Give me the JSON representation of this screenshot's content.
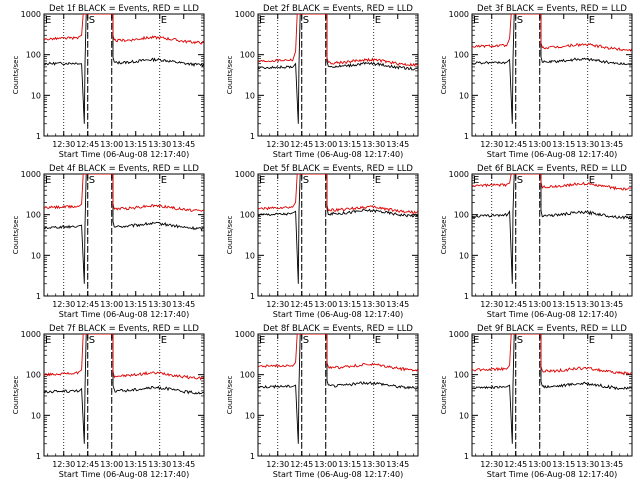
{
  "chart_data": [
    {
      "type": "line",
      "title": "Det 1f BLACK = Events, RED = LLD",
      "xlabel": "Start Time (06-Aug-08 12:17:40)",
      "ylabel": "Counts/sec",
      "yscale": "log",
      "ylim": [
        1,
        1000
      ],
      "y_ticks": [
        "1",
        "10",
        "100",
        "1000"
      ],
      "x_ticks": [
        "12:30",
        "12:45",
        "13:00",
        "13:15",
        "13:30",
        "13:45"
      ],
      "x_range_min": [
        0,
        100
      ],
      "gridlines_x": [
        12.33,
        27.33,
        42.33,
        72.33
      ],
      "markers": [
        {
          "text": "E",
          "x": 0
        },
        {
          "text": "S",
          "x": 27.33
        },
        {
          "text": "E",
          "x": 72.33
        }
      ],
      "dashed_lines_x": [
        27.33,
        42.33
      ],
      "series": [
        {
          "name": "BLACK = Events",
          "color": "#000000",
          "values": [
            {
              "x": 0,
              "y": 60
            },
            {
              "x": 22,
              "y": 62
            },
            {
              "x": 23.5,
              "y": 60
            }
          ]
        },
        {
          "name": "RED = LLD",
          "color": "#dd0000",
          "values": [
            {
              "x": 0,
              "y": 240
            },
            {
              "x": 22,
              "y": 260
            },
            {
              "x": 23.5,
              "y": 300
            }
          ]
        }
      ]
    },
    {
      "type": "line",
      "title": "Det 2f BLACK = Events, RED = LLD",
      "xlabel": "Start Time (06-Aug-08 12:17:40)",
      "ylabel": "Counts/sec",
      "yscale": "log",
      "ylim": [
        1,
        1000
      ],
      "y_ticks": [
        "1",
        "10",
        "100",
        "1000"
      ],
      "x_ticks": [
        "12:30",
        "12:45",
        "13:00",
        "13:15",
        "13:30",
        "13:45"
      ],
      "x_range_min": [
        0,
        100
      ],
      "gridlines_x": [
        12.33,
        27.33,
        42.33,
        72.33
      ],
      "markers": [
        {
          "text": "E",
          "x": 0
        },
        {
          "text": "S",
          "x": 27.33
        },
        {
          "text": "E",
          "x": 72.33
        }
      ],
      "dashed_lines_x": [
        27.33,
        42.33
      ],
      "series": [
        {
          "name": "BLACK = Events",
          "color": "#000000",
          "values": [
            {
              "x": 0,
              "y": 48
            },
            {
              "x": 22,
              "y": 50
            },
            {
              "x": 23.5,
              "y": 60
            }
          ]
        },
        {
          "name": "RED = LLD",
          "color": "#dd0000",
          "values": [
            {
              "x": 0,
              "y": 68
            },
            {
              "x": 22,
              "y": 75
            },
            {
              "x": 23.5,
              "y": 120
            }
          ]
        }
      ]
    },
    {
      "type": "line",
      "title": "Det 3f BLACK = Events, RED = LLD",
      "xlabel": "Start Time (06-Aug-08 12:17:40)",
      "ylabel": "Counts/sec",
      "yscale": "log",
      "ylim": [
        1,
        1000
      ],
      "y_ticks": [
        "1",
        "10",
        "100",
        "1000"
      ],
      "x_ticks": [
        "12:30",
        "12:45",
        "13:00",
        "13:15",
        "13:30",
        "13:45"
      ],
      "x_range_min": [
        0,
        100
      ],
      "gridlines_x": [
        12.33,
        27.33,
        42.33,
        72.33
      ],
      "markers": [
        {
          "text": "E",
          "x": 0
        },
        {
          "text": "S",
          "x": 27.33
        },
        {
          "text": "E",
          "x": 72.33
        }
      ],
      "dashed_lines_x": [
        27.33,
        42.33
      ],
      "series": [
        {
          "name": "BLACK = Events",
          "color": "#000000",
          "values": [
            {
              "x": 0,
              "y": 62
            },
            {
              "x": 22,
              "y": 65
            },
            {
              "x": 23.5,
              "y": 75
            }
          ]
        },
        {
          "name": "RED = LLD",
          "color": "#dd0000",
          "values": [
            {
              "x": 0,
              "y": 160
            },
            {
              "x": 22,
              "y": 170
            },
            {
              "x": 23.5,
              "y": 250
            }
          ]
        }
      ]
    },
    {
      "type": "line",
      "title": "Det 4f BLACK = Events, RED = LLD",
      "xlabel": "Start Time (06-Aug-08 12:17:40)",
      "ylabel": "Counts/sec",
      "yscale": "log",
      "ylim": [
        1,
        1000
      ],
      "y_ticks": [
        "1",
        "10",
        "100",
        "1000"
      ],
      "x_ticks": [
        "12:30",
        "12:45",
        "13:00",
        "13:15",
        "13:30",
        "13:45"
      ],
      "x_range_min": [
        0,
        100
      ],
      "gridlines_x": [
        12.33,
        27.33,
        42.33,
        72.33
      ],
      "markers": [
        {
          "text": "E",
          "x": 0
        },
        {
          "text": "S",
          "x": 27.33
        },
        {
          "text": "E",
          "x": 72.33
        }
      ],
      "dashed_lines_x": [
        27.33,
        42.33
      ],
      "series": [
        {
          "name": "BLACK = Events",
          "color": "#000000",
          "values": [
            {
              "x": 0,
              "y": 48
            },
            {
              "x": 22,
              "y": 52
            },
            {
              "x": 23.5,
              "y": 55
            }
          ]
        },
        {
          "name": "RED = LLD",
          "color": "#dd0000",
          "values": [
            {
              "x": 0,
              "y": 150
            },
            {
              "x": 22,
              "y": 160
            },
            {
              "x": 23.5,
              "y": 180
            }
          ]
        }
      ]
    },
    {
      "type": "line",
      "title": "Det 5f BLACK = Events, RED = LLD",
      "xlabel": "Start Time (06-Aug-08 12:17:40)",
      "ylabel": "Counts/sec",
      "yscale": "log",
      "ylim": [
        1,
        1000
      ],
      "y_ticks": [
        "1",
        "10",
        "100",
        "1000"
      ],
      "x_ticks": [
        "12:30",
        "12:45",
        "13:00",
        "13:15",
        "13:30",
        "13:45"
      ],
      "x_range_min": [
        0,
        100
      ],
      "gridlines_x": [
        12.33,
        27.33,
        42.33,
        72.33
      ],
      "markers": [
        {
          "text": "E",
          "x": 0
        },
        {
          "text": "S",
          "x": 27.33
        },
        {
          "text": "E",
          "x": 72.33
        }
      ],
      "dashed_lines_x": [
        27.33,
        42.33
      ],
      "series": [
        {
          "name": "BLACK = Events",
          "color": "#000000",
          "values": [
            {
              "x": 0,
              "y": 100
            },
            {
              "x": 22,
              "y": 105
            },
            {
              "x": 23.5,
              "y": 120
            }
          ]
        },
        {
          "name": "RED = LLD",
          "color": "#dd0000",
          "values": [
            {
              "x": 0,
              "y": 140
            },
            {
              "x": 22,
              "y": 150
            },
            {
              "x": 23.5,
              "y": 200
            }
          ]
        }
      ]
    },
    {
      "type": "line",
      "title": "Det 6f BLACK = Events, RED = LLD",
      "xlabel": "Start Time (06-Aug-08 12:17:40)",
      "ylabel": "Counts/sec",
      "yscale": "log",
      "ylim": [
        1,
        1000
      ],
      "y_ticks": [
        "1",
        "10",
        "100",
        "1000"
      ],
      "x_ticks": [
        "12:30",
        "12:45",
        "13:00",
        "13:15",
        "13:30",
        "13:45"
      ],
      "x_range_min": [
        0,
        100
      ],
      "gridlines_x": [
        12.33,
        27.33,
        42.33,
        72.33
      ],
      "markers": [
        {
          "text": "E",
          "x": 0
        },
        {
          "text": "S",
          "x": 27.33
        },
        {
          "text": "E",
          "x": 72.33
        }
      ],
      "dashed_lines_x": [
        27.33,
        42.33
      ],
      "series": [
        {
          "name": "BLACK = Events",
          "color": "#000000",
          "values": [
            {
              "x": 0,
              "y": 90
            },
            {
              "x": 22,
              "y": 100
            },
            {
              "x": 23.5,
              "y": 120
            }
          ]
        },
        {
          "name": "RED = LLD",
          "color": "#dd0000",
          "values": [
            {
              "x": 0,
              "y": 520
            },
            {
              "x": 22,
              "y": 540
            },
            {
              "x": 23.5,
              "y": 600
            }
          ]
        }
      ]
    },
    {
      "type": "line",
      "title": "Det 7f BLACK = Events, RED = LLD",
      "xlabel": "Start Time (06-Aug-08 12:17:40)",
      "ylabel": "Counts/sec",
      "yscale": "log",
      "ylim": [
        1,
        1000
      ],
      "y_ticks": [
        "1",
        "10",
        "100",
        "1000"
      ],
      "x_ticks": [
        "12:30",
        "12:45",
        "13:00",
        "13:15",
        "13:30",
        "13:45"
      ],
      "x_range_min": [
        0,
        100
      ],
      "gridlines_x": [
        12.33,
        27.33,
        42.33,
        72.33
      ],
      "markers": [
        {
          "text": "E",
          "x": 0
        },
        {
          "text": "S",
          "x": 27.33
        },
        {
          "text": "E",
          "x": 72.33
        }
      ],
      "dashed_lines_x": [
        27.33,
        42.33
      ],
      "series": [
        {
          "name": "BLACK = Events",
          "color": "#000000",
          "values": [
            {
              "x": 0,
              "y": 38
            },
            {
              "x": 22,
              "y": 40
            },
            {
              "x": 23.5,
              "y": 45
            }
          ]
        },
        {
          "name": "RED = LLD",
          "color": "#dd0000",
          "values": [
            {
              "x": 0,
              "y": 100
            },
            {
              "x": 22,
              "y": 110
            },
            {
              "x": 23.5,
              "y": 130
            }
          ]
        }
      ]
    },
    {
      "type": "line",
      "title": "Det 8f BLACK = Events, RED = LLD",
      "xlabel": "Start Time (06-Aug-08 12:17:40)",
      "ylabel": "Counts/sec",
      "yscale": "log",
      "ylim": [
        1,
        1000
      ],
      "y_ticks": [
        "1",
        "10",
        "100",
        "1000"
      ],
      "x_ticks": [
        "12:30",
        "12:45",
        "13:00",
        "13:15",
        "13:30",
        "13:45"
      ],
      "x_range_min": [
        0,
        100
      ],
      "gridlines_x": [
        12.33,
        27.33,
        42.33,
        72.33
      ],
      "markers": [
        {
          "text": "E",
          "x": 0
        },
        {
          "text": "S",
          "x": 27.33
        },
        {
          "text": "E",
          "x": 72.33
        }
      ],
      "dashed_lines_x": [
        27.33,
        42.33
      ],
      "series": [
        {
          "name": "BLACK = Events",
          "color": "#000000",
          "values": [
            {
              "x": 0,
              "y": 50
            },
            {
              "x": 22,
              "y": 52
            },
            {
              "x": 23.5,
              "y": 55
            }
          ]
        },
        {
          "name": "RED = LLD",
          "color": "#dd0000",
          "values": [
            {
              "x": 0,
              "y": 160
            },
            {
              "x": 22,
              "y": 170
            },
            {
              "x": 23.5,
              "y": 200
            }
          ]
        }
      ]
    },
    {
      "type": "line",
      "title": "Det 9f BLACK = Events, RED = LLD",
      "xlabel": "Start Time (06-Aug-08 12:17:40)",
      "ylabel": "Counts/sec",
      "yscale": "log",
      "ylim": [
        1,
        1000
      ],
      "y_ticks": [
        "1",
        "10",
        "100",
        "1000"
      ],
      "x_ticks": [
        "12:30",
        "12:45",
        "13:00",
        "13:15",
        "13:30",
        "13:45"
      ],
      "x_range_min": [
        0,
        100
      ],
      "gridlines_x": [
        12.33,
        27.33,
        42.33,
        72.33
      ],
      "markers": [
        {
          "text": "E",
          "x": 0
        },
        {
          "text": "S",
          "x": 27.33
        },
        {
          "text": "E",
          "x": 72.33
        }
      ],
      "dashed_lines_x": [
        27.33,
        42.33
      ],
      "series": [
        {
          "name": "BLACK = Events",
          "color": "#000000",
          "values": [
            {
              "x": 0,
              "y": 48
            },
            {
              "x": 22,
              "y": 50
            },
            {
              "x": 23.5,
              "y": 55
            }
          ]
        },
        {
          "name": "RED = LLD",
          "color": "#dd0000",
          "values": [
            {
              "x": 0,
              "y": 130
            },
            {
              "x": 22,
              "y": 140
            },
            {
              "x": 23.5,
              "y": 170
            }
          ]
        }
      ]
    }
  ]
}
